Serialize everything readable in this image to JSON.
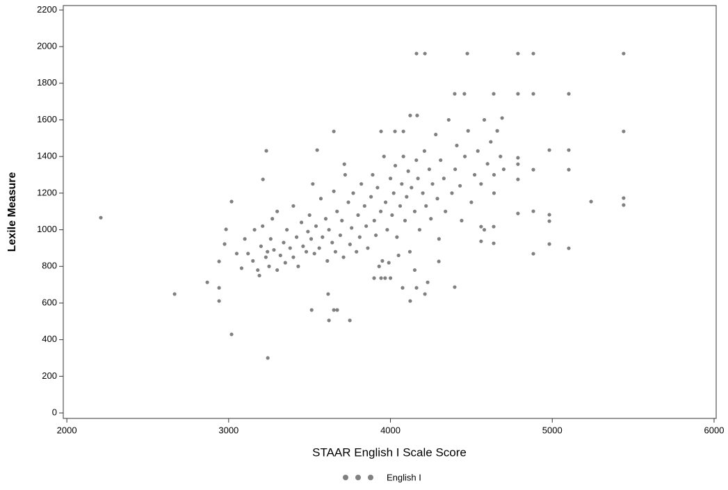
{
  "chart_data": {
    "type": "scatter",
    "x_label": "STAAR English I Scale Score",
    "y_label": "Lexile Measure",
    "xlim": [
      1978,
      6013
    ],
    "xticks": [
      2000,
      3000,
      4000,
      5000,
      6000
    ],
    "ylim": [
      -30,
      2224
    ],
    "yticks": [
      0,
      200,
      400,
      600,
      800,
      1000,
      1200,
      1400,
      1600,
      1800,
      2000,
      2200
    ],
    "legend": "bottom",
    "x": [
      2210,
      2666,
      2868,
      2941,
      2941,
      2941,
      2975,
      2984,
      3018,
      3018,
      3242,
      3233,
      3212,
      3513,
      3620,
      3650,
      3671,
      3749,
      3615,
      3547,
      3650,
      3715,
      3942,
      4028,
      4080,
      4122,
      4165,
      4161,
      4213,
      4475,
      4397,
      4457,
      4638,
      4788,
      4883,
      5441,
      4788,
      4883,
      5102,
      5102,
      5102,
      5102,
      4982,
      4982,
      4982,
      4982,
      5240,
      5441,
      5441,
      5441,
      4883,
      4883,
      4883,
      4788,
      4788,
      4788,
      4788,
      4638,
      4638,
      4560,
      4560,
      4397,
      4230,
      4122,
      4075,
      4161,
      4213,
      4299,
      4000,
      3967,
      3942,
      3899,
      3050,
      3080,
      3100,
      3120,
      3150,
      3160,
      3180,
      3190,
      3200,
      3210,
      3230,
      3240,
      3250,
      3260,
      3270,
      3280,
      3300,
      3300,
      3320,
      3340,
      3350,
      3360,
      3380,
      3400,
      3400,
      3420,
      3430,
      3450,
      3460,
      3480,
      3490,
      3500,
      3510,
      3520,
      3530,
      3540,
      3560,
      3570,
      3580,
      3600,
      3610,
      3620,
      3640,
      3650,
      3660,
      3670,
      3690,
      3700,
      3710,
      3720,
      3740,
      3750,
      3760,
      3770,
      3790,
      3800,
      3810,
      3820,
      3840,
      3850,
      3860,
      3880,
      3890,
      3900,
      3910,
      3920,
      3940,
      3950,
      3960,
      3970,
      3980,
      4000,
      4010,
      4020,
      4030,
      4040,
      4060,
      4070,
      4080,
      4090,
      4100,
      4110,
      4120,
      4130,
      4150,
      4160,
      4170,
      4180,
      4200,
      4210,
      4220,
      4240,
      4250,
      4260,
      4280,
      4290,
      4300,
      4310,
      4330,
      4340,
      4360,
      4380,
      4400,
      4410,
      4430,
      4440,
      4460,
      4480,
      4500,
      4520,
      4540,
      4560,
      4580,
      4600,
      4620,
      4640,
      4660,
      4680,
      4690,
      4700,
      4640,
      4580,
      3930,
      3990,
      4050,
      4150
    ],
    "series": [
      {
        "name": "English I",
        "color": "#808080",
        "values": [
          1066,
          649,
          713,
          683,
          611,
          827,
          922,
          1002,
          1154,
          429,
          300,
          1431,
          1275,
          562,
          505,
          562,
          562,
          505,
          649,
          1435,
          1537,
          1358,
          1537,
          1537,
          1537,
          1624,
          1624,
          1962,
          1962,
          1962,
          1742,
          1742,
          1742,
          1962,
          1962,
          1962,
          1742,
          1742,
          1742,
          1435,
          1328,
          899,
          1435,
          1082,
          1047,
          922,
          1154,
          1537,
          1173,
          1135,
          1101,
          869,
          1328,
          1089,
          1275,
          1358,
          1393,
          1017,
          926,
          937,
          1017,
          687,
          713,
          611,
          683,
          683,
          649,
          827,
          736,
          736,
          736,
          736,
          870,
          790,
          950,
          870,
          830,
          1000,
          780,
          750,
          910,
          1020,
          850,
          880,
          800,
          950,
          1060,
          890,
          780,
          1100,
          860,
          930,
          820,
          1000,
          900,
          850,
          1130,
          960,
          800,
          1040,
          910,
          880,
          990,
          1080,
          950,
          1250,
          870,
          1020,
          900,
          1170,
          960,
          1060,
          830,
          1000,
          930,
          1210,
          880,
          1100,
          970,
          1050,
          850,
          1300,
          1150,
          920,
          1010,
          1200,
          880,
          1080,
          960,
          1250,
          1130,
          1020,
          900,
          1180,
          1300,
          1050,
          970,
          1230,
          1100,
          830,
          1400,
          1150,
          1000,
          1280,
          1080,
          1200,
          1350,
          960,
          1130,
          1250,
          1400,
          1050,
          1180,
          1320,
          880,
          1230,
          1100,
          1380,
          1280,
          1000,
          1200,
          1430,
          1130,
          1330,
          1060,
          1250,
          1520,
          1170,
          950,
          1380,
          1280,
          1100,
          1600,
          1200,
          1330,
          1460,
          1240,
          1050,
          1400,
          1540,
          1150,
          1300,
          1430,
          1250,
          1600,
          1360,
          1480,
          1300,
          1540,
          1400,
          1610,
          1330,
          1200,
          1000,
          800,
          820,
          860,
          780
        ]
      }
    ]
  }
}
